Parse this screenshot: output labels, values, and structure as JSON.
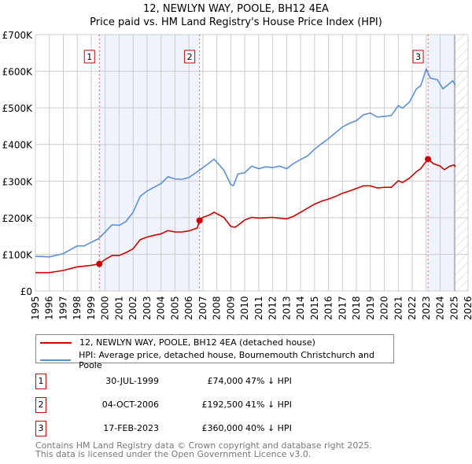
{
  "title": "12, NEWLYN WAY, POOLE, BH12 4EA",
  "subtitle": "Price paid vs. HM Land Registry's House Price Index (HPI)",
  "chart_data": {
    "type": "line",
    "title": "12, NEWLYN WAY, POOLE, BH12 4EA",
    "subtitle": "Price paid vs. HM Land Registry's House Price Index (HPI)",
    "xlim": [
      1995,
      2026
    ],
    "ylim": [
      0,
      700000
    ],
    "yticks": [
      {
        "v": 0,
        "label": "£0"
      },
      {
        "v": 100000,
        "label": "£100K"
      },
      {
        "v": 200000,
        "label": "£200K"
      },
      {
        "v": 300000,
        "label": "£300K"
      },
      {
        "v": 400000,
        "label": "£400K"
      },
      {
        "v": 500000,
        "label": "£500K"
      },
      {
        "v": 600000,
        "label": "£600K"
      },
      {
        "v": 700000,
        "label": "£700K"
      }
    ],
    "xticks": [
      "1995",
      "1996",
      "1997",
      "1998",
      "1999",
      "2000",
      "2001",
      "2002",
      "2003",
      "2004",
      "2005",
      "2006",
      "2007",
      "2008",
      "2009",
      "2010",
      "2011",
      "2012",
      "2013",
      "2014",
      "2015",
      "2016",
      "2017",
      "2018",
      "2019",
      "2020",
      "2021",
      "2022",
      "2023",
      "2024",
      "2025",
      "2026"
    ],
    "grid": true,
    "series": [
      {
        "name": "12, NEWLYN WAY, POOLE, BH12 4EA (detached house)",
        "color": "#cc0000",
        "x": [
          1995,
          1996,
          1997,
          1998,
          1999,
          1999.58,
          2000,
          2000.5,
          2001,
          2001.5,
          2002,
          2002.5,
          2003,
          2003.5,
          2004,
          2004.5,
          2005,
          2005.5,
          2006,
          2006.6,
          2006.76,
          2007,
          2007.5,
          2007.8,
          2008.5,
          2009,
          2009.3,
          2009.5,
          2010,
          2010.5,
          2011,
          2012,
          2013,
          2013.5,
          2014,
          2014.5,
          2015,
          2015.5,
          2016,
          2016.5,
          2017,
          2017.5,
          2018,
          2018.5,
          2019,
          2019.5,
          2020,
          2020.5,
          2021,
          2021.3,
          2021.8,
          2022.3,
          2022.6,
          2023.13,
          2023.5,
          2024,
          2024.3,
          2024.7,
          2025,
          2025.1
        ],
        "y": [
          50000,
          50000,
          56000,
          66000,
          70000,
          74000,
          86000,
          97000,
          97000,
          105000,
          115000,
          140000,
          147000,
          152000,
          156000,
          165000,
          161000,
          161000,
          164000,
          172000,
          192500,
          201000,
          208000,
          215000,
          201000,
          176000,
          174000,
          179000,
          194000,
          201000,
          199000,
          201000,
          197000,
          204000,
          215000,
          226000,
          237000,
          245000,
          251000,
          258000,
          267000,
          273000,
          280000,
          287000,
          287000,
          281000,
          283000,
          283000,
          301000,
          296000,
          308000,
          326000,
          334000,
          360000,
          348000,
          341000,
          331000,
          341000,
          344000,
          339000
        ]
      },
      {
        "name": "HPI: Average price, detached house, Bournemouth Christchurch and Poole",
        "color": "#5b8fd4",
        "x": [
          1995,
          1996,
          1997,
          1998,
          1998.5,
          1999,
          1999.5,
          2000,
          2000.5,
          2001,
          2001.5,
          2002,
          2002.5,
          2003,
          2003.5,
          2004,
          2004.5,
          2005,
          2005.5,
          2006,
          2006.5,
          2007,
          2007.5,
          2007.8,
          2008.5,
          2009,
          2009.2,
          2009.5,
          2010,
          2010.5,
          2011,
          2011.5,
          2012,
          2012.5,
          2013,
          2013.5,
          2014,
          2014.5,
          2015,
          2015.5,
          2016,
          2016.5,
          2017,
          2017.5,
          2018,
          2018.5,
          2019,
          2019.5,
          2020,
          2020.5,
          2021,
          2021.3,
          2021.8,
          2022.3,
          2022.6,
          2023,
          2023.3,
          2023.8,
          2024.2,
          2024.5,
          2024.9,
          2025.1
        ],
        "y": [
          95000,
          93000,
          102000,
          123000,
          123000,
          133000,
          142000,
          161000,
          181000,
          179000,
          190000,
          215000,
          258000,
          273000,
          283000,
          293000,
          312000,
          306000,
          305000,
          310000,
          323000,
          337000,
          351000,
          360000,
          330000,
          290000,
          288000,
          319000,
          323000,
          341000,
          334000,
          339000,
          337000,
          341000,
          334000,
          348000,
          359000,
          369000,
          387000,
          402000,
          416000,
          432000,
          448000,
          458000,
          465000,
          481000,
          486000,
          475000,
          477000,
          479000,
          506000,
          499000,
          516000,
          552000,
          560000,
          606000,
          581000,
          577000,
          552000,
          561000,
          574000,
          562000
        ]
      }
    ],
    "sales": [
      {
        "id": "1",
        "x": 1999.58,
        "y": 74000,
        "date": "30-JUL-1999",
        "price": "£74,000",
        "hpi": "47% ↓ HPI"
      },
      {
        "id": "2",
        "x": 2006.76,
        "y": 192500,
        "date": "04-OCT-2006",
        "price": "£192,500",
        "hpi": "41% ↓ HPI"
      },
      {
        "id": "3",
        "x": 2023.13,
        "y": 360000,
        "date": "17-FEB-2023",
        "price": "£360,000",
        "hpi": "40% ↓ HPI"
      }
    ],
    "data_end": 2025.05,
    "legend_position": "bottom"
  },
  "footer": {
    "line1": "Contains HM Land Registry data © Crown copyright and database right 2025.",
    "line2": "This data is licensed under the Open Government Licence v3.0."
  }
}
